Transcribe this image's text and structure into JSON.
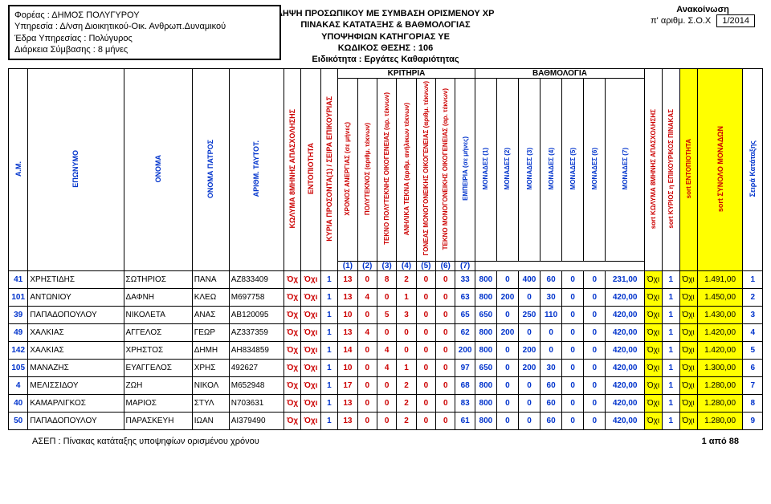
{
  "header": {
    "foreas": "Φορέας : ΔΗΜΟΣ ΠΟΛΥΓΥΡΟΥ",
    "ypiresia": "Υπηρεσία :  Δ/νση Διοικητικού-Οικ. Ανθρωπ.Δυναμικού",
    "edra": "Έδρα Υπηρεσίας : Πολύγυρος",
    "diarkeia": "Διάρκεια Σύμβασης :  8 μήνες",
    "title1": "ΛΗΨΗ ΠΡΟΣΩΠΙΚΟΥ ΜΕ ΣΥΜΒΑΣΗ ΟΡΙΣΜΕΝΟΥ ΧΡ",
    "title2": "ΠΙΝΑΚΑΣ ΚΑΤΑΤΑΞΗΣ & ΒΑΘΜΟΛΟΓΙΑΣ",
    "title3": "ΥΠΟΨΗΦΙΩΝ ΚΑΤΗΓΟΡΙΑΣ ΥΕ",
    "title4": "ΚΩΔΙΚΟΣ ΘΕΣΗΣ : 106",
    "title5": "Ειδικότητα :  Εργάτες Καθαριότητας",
    "anak_label": "Ανακοίνωση",
    "yp_arith": "π' αριθμ.  Σ.Ο.Χ",
    "anak_num": "1/2014"
  },
  "col_headers": {
    "am": "Α.Μ.",
    "eponimo": "ΕΠΩΝΥΜΟ",
    "onoma": "ΟΝΟΜΑ",
    "patros": "ΟΝΟΜΑ ΠΑΤΡΟΣ",
    "arithm": "ΑΡΙΘΜ. ΤΑΥΤΟΤ.",
    "kolyma": "ΚΩΛΥΜΑ 8ΜΗΝΗΣ ΑΠΑΣΧΟΛΗΣΗΣ",
    "entop": "ΕΝΤΟΠΙΟΤΗΤΑ",
    "kyria": "ΚΥΡΙΑ ΠΡΟΣΟΝΤΑ(1) / ΣΕΙΡΑ ΕΠΙΚΟΥΡΙΑΣ",
    "kritiria": "ΚΡΙΤΗΡΙΑ",
    "bathm": "ΒΑΘΜΟΛΟΓΙΑ",
    "k1": "ΧΡΟΝΟΣ ΑΝΕΡΓΙΑΣ (σε μήνες)",
    "k2": "ΠΟΛΥΤΕΚΝΟΣ (αριθμ. τέκνων)",
    "k3": "ΤΕΚΝΟ ΠΟΛΥΤΕΚΝΗΣ ΟΙΚΟΓΕΝΕΙΑΣ (αρ. τέκνων)",
    "k4": "ΑΝΗΛΙΚΑ ΤΕΚΝΑ (αριθμ. ανήλικων τέκνων)",
    "k5": "ΓΟΝΕΑΣ ΜΟΝΟΓΟΝΕΙΚΗΣ ΟΙΚΟΓΕΝΕΙΑΣ (αριθμ. τέκνων)",
    "k6": "ΤΕΚΝΟ ΜΟΝΟΓΟΝΕΙΚΗΣ ΟΙΚΟΓΕΝΕΙΑΣ (αρ. τέκνων)",
    "k7": "ΕΜΠΕΙΡΙΑ (σε μήνες)",
    "mon": [
      "ΜΟΝΑΔΕΣ (1)",
      "ΜΟΝΑΔΕΣ (2)",
      "ΜΟΝΑΔΕΣ (3)",
      "ΜΟΝΑΔΕΣ (4)",
      "ΜΟΝΑΔΕΣ (5)",
      "ΜΟΝΑΔΕΣ (6)",
      "ΜΟΝΑΔΕΣ (7)"
    ],
    "sort_kol": "sort ΚΩΛΥΜΑ 8ΜΗΝΗΣ ΑΠΑΣΧΟΛΗΣΗΣ",
    "sort_kyr": "sort ΚΥΡΙΟΣ η ΕΠΙΚΟΥΡΙΚΟΣ ΠΙΝΑΚΑΣ",
    "sort_ent": "sort ΕΝΤΟΠΙΟΤΗΤΑ",
    "sort_syn": "sort ΣΥΝΟΛΟ ΜΟΝΑΔΩΝ",
    "seira": "Σειρά Κατάταξης",
    "numrow": [
      "(1)",
      "(2)",
      "(3)",
      "(4)",
      "(5)",
      "(6)",
      "(7)"
    ]
  },
  "rows": [
    {
      "am": "41",
      "ep": "ΧΡΗΣΤΙΔΗΣ",
      "on": "ΣΩΤΗΡΙΟΣ",
      "pat": "ΠΑΝΑ",
      "taut": "ΑΖ833409",
      "kol": "Όχ",
      "ent": "Όχι",
      "kyr": "1",
      "k": [
        "13",
        "0",
        "8",
        "2",
        "0",
        "0",
        "33"
      ],
      "m": [
        "800",
        "0",
        "400",
        "60",
        "0",
        "0",
        "231,00"
      ],
      "s1": "Όχι",
      "s2": "1",
      "s3": "Όχι",
      "syn": "1.491,00",
      "seira": "1"
    },
    {
      "am": "101",
      "ep": "ΑΝΤΩΝΙΟΥ",
      "on": "ΔΑΦΝΗ",
      "pat": "ΚΛΕΩ",
      "taut": "Μ697758",
      "kol": "Όχ",
      "ent": "Όχι",
      "kyr": "1",
      "k": [
        "13",
        "4",
        "0",
        "1",
        "0",
        "0",
        "63"
      ],
      "m": [
        "800",
        "200",
        "0",
        "30",
        "0",
        "0",
        "420,00"
      ],
      "s1": "Όχι",
      "s2": "1",
      "s3": "Όχι",
      "syn": "1.450,00",
      "seira": "2"
    },
    {
      "am": "39",
      "ep": "ΠΑΠΑΔΟΠΟΥΛΟΥ",
      "on": "ΝΙΚΟΛΕΤΑ",
      "pat": "ΑΝΑΣ",
      "taut": "ΑΒ120095",
      "kol": "Όχ",
      "ent": "Όχι",
      "kyr": "1",
      "k": [
        "10",
        "0",
        "5",
        "3",
        "0",
        "0",
        "65"
      ],
      "m": [
        "650",
        "0",
        "250",
        "110",
        "0",
        "0",
        "420,00"
      ],
      "s1": "Όχι",
      "s2": "1",
      "s3": "Όχι",
      "syn": "1.430,00",
      "seira": "3"
    },
    {
      "am": "49",
      "ep": "ΧΑΛΚΙΑΣ",
      "on": "ΑΓΓΕΛΟΣ",
      "pat": "ΓΕΩΡ",
      "taut": "ΑΖ337359",
      "kol": "Όχ",
      "ent": "Όχι",
      "kyr": "1",
      "k": [
        "13",
        "4",
        "0",
        "0",
        "0",
        "0",
        "62"
      ],
      "m": [
        "800",
        "200",
        "0",
        "0",
        "0",
        "0",
        "420,00"
      ],
      "s1": "Όχι",
      "s2": "1",
      "s3": "Όχι",
      "syn": "1.420,00",
      "seira": "4"
    },
    {
      "am": "142",
      "ep": "ΧΑΛΚΙΑΣ",
      "on": "ΧΡΗΣΤΟΣ",
      "pat": "ΔΗΜΗ",
      "taut": "ΑΗ834859",
      "kol": "Όχ",
      "ent": "Όχι",
      "kyr": "1",
      "k": [
        "14",
        "0",
        "4",
        "0",
        "0",
        "0",
        "200"
      ],
      "m": [
        "800",
        "0",
        "200",
        "0",
        "0",
        "0",
        "420,00"
      ],
      "s1": "Όχι",
      "s2": "1",
      "s3": "Όχι",
      "syn": "1.420,00",
      "seira": "5"
    },
    {
      "am": "105",
      "ep": "ΜΑΝΑΖΗΣ",
      "on": "ΕΥΑΓΓΕΛΟΣ",
      "pat": "ΧΡΗΣ",
      "taut": "492627",
      "kol": "Όχ",
      "ent": "Όχι",
      "kyr": "1",
      "k": [
        "10",
        "0",
        "4",
        "1",
        "0",
        "0",
        "97"
      ],
      "m": [
        "650",
        "0",
        "200",
        "30",
        "0",
        "0",
        "420,00"
      ],
      "s1": "Όχι",
      "s2": "1",
      "s3": "Όχι",
      "syn": "1.300,00",
      "seira": "6"
    },
    {
      "am": "4",
      "ep": "ΜΕΛΙΣΣΙΔΟΥ",
      "on": "ΖΩΗ",
      "pat": "ΝΙΚΟΛ",
      "taut": "Μ652948",
      "kol": "Όχ",
      "ent": "Όχι",
      "kyr": "1",
      "k": [
        "17",
        "0",
        "0",
        "2",
        "0",
        "0",
        "68"
      ],
      "m": [
        "800",
        "0",
        "0",
        "60",
        "0",
        "0",
        "420,00"
      ],
      "s1": "Όχι",
      "s2": "1",
      "s3": "Όχι",
      "syn": "1.280,00",
      "seira": "7"
    },
    {
      "am": "40",
      "ep": "ΚΑΜΑΡΛΙΓΚΟΣ",
      "on": "ΜΑΡΙΟΣ",
      "pat": "ΣΤΥΛ",
      "taut": "Ν703631",
      "kol": "Όχ",
      "ent": "Όχι",
      "kyr": "1",
      "k": [
        "13",
        "0",
        "0",
        "2",
        "0",
        "0",
        "83"
      ],
      "m": [
        "800",
        "0",
        "0",
        "60",
        "0",
        "0",
        "420,00"
      ],
      "s1": "Όχι",
      "s2": "1",
      "s3": "Όχι",
      "syn": "1.280,00",
      "seira": "8"
    },
    {
      "am": "50",
      "ep": "ΠΑΠΑΔΟΠΟΥΛΟΥ",
      "on": "ΠΑΡΑΣΚΕΥΗ",
      "pat": "ΙΩΑΝ",
      "taut": "ΑΙ379490",
      "kol": "Όχ",
      "ent": "Όχι",
      "kyr": "1",
      "k": [
        "13",
        "0",
        "0",
        "2",
        "0",
        "0",
        "61"
      ],
      "m": [
        "800",
        "0",
        "0",
        "60",
        "0",
        "0",
        "420,00"
      ],
      "s1": "Όχι",
      "s2": "1",
      "s3": "Όχι",
      "syn": "1.280,00",
      "seira": "9"
    }
  ],
  "footer": {
    "left": "ΑΣΕΠ : Πίνακας κατάταξης  υποψηφίων ορισμένου χρόνου",
    "right": "1 από 88"
  },
  "colors": {
    "blue": "#0033cc",
    "red": "#cc0000",
    "yellow": "#ffff00"
  }
}
